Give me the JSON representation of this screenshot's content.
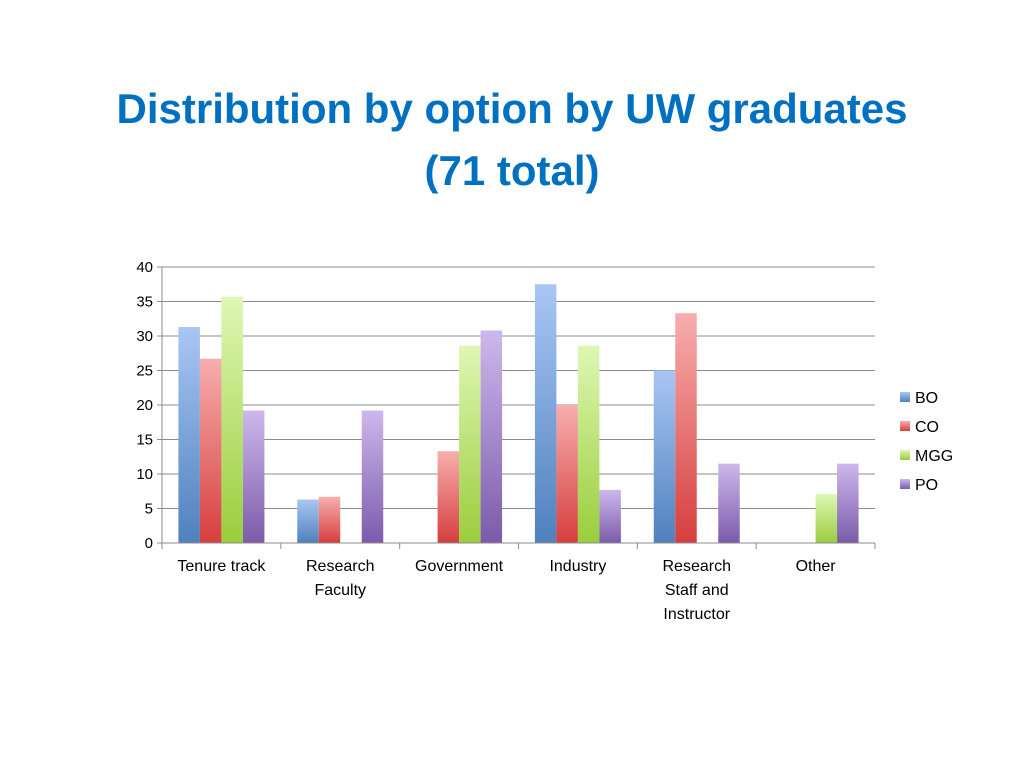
{
  "title": {
    "line1": "Distribution by option by UW graduates",
    "line2": "(71 total)"
  },
  "chart_data": {
    "type": "bar",
    "categories": [
      [
        "Tenure track"
      ],
      [
        "Research",
        "Faculty"
      ],
      [
        "Government"
      ],
      [
        "Industry"
      ],
      [
        "Research",
        "Staff and",
        "Instructor"
      ],
      [
        "Other"
      ]
    ],
    "series": [
      {
        "name": "BO",
        "color": "#4F81BD",
        "light": "#A9C6F4",
        "values": [
          31.3,
          6.3,
          0,
          37.5,
          25,
          0
        ]
      },
      {
        "name": "CO",
        "color": "#D63E3E",
        "light": "#F7AEAE",
        "values": [
          26.7,
          6.7,
          13.3,
          20,
          33.3,
          0
        ]
      },
      {
        "name": "MGG",
        "color": "#9ACD3C",
        "light": "#DFF7B4",
        "values": [
          35.7,
          0,
          28.6,
          28.6,
          0,
          7.1
        ]
      },
      {
        "name": "PO",
        "color": "#7B5BAA",
        "light": "#CDB8EC",
        "values": [
          19.2,
          19.2,
          30.8,
          7.7,
          11.5,
          11.5
        ]
      }
    ],
    "ylim": [
      0,
      40
    ],
    "yticks": [
      0,
      5,
      10,
      15,
      20,
      25,
      30,
      35,
      40
    ],
    "grid": true,
    "legend": "right",
    "xlabel": "",
    "ylabel": ""
  }
}
